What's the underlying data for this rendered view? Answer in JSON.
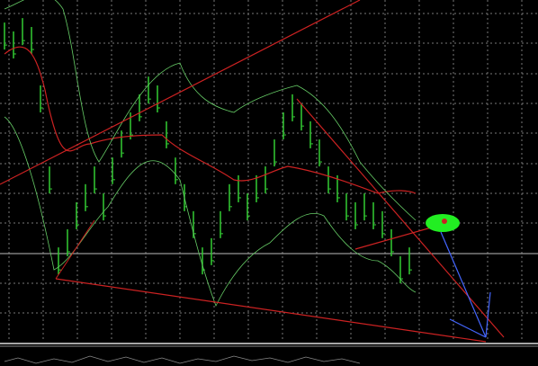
{
  "chart_data": {
    "type": "ohlc",
    "color": "#33cc33",
    "categories": [
      null,
      null,
      null,
      null,
      null,
      null,
      null,
      null,
      null,
      null,
      null,
      null,
      null,
      null,
      null,
      null,
      null,
      null,
      null,
      null,
      null,
      null,
      null,
      null,
      null,
      null,
      null,
      null,
      null,
      null,
      null,
      null,
      null,
      null,
      null,
      null,
      null,
      null,
      null,
      null,
      null,
      null,
      null,
      null,
      null,
      null
    ],
    "high": [
      93.4,
      90.8,
      94.7,
      92.1,
      75.0,
      51.3,
      27.6,
      32.9,
      40.8,
      46.1,
      51.3,
      43.4,
      53.9,
      61.8,
      67.1,
      72.4,
      77.6,
      75.0,
      64.5,
      53.9,
      46.1,
      38.2,
      27.6,
      30.3,
      38.2,
      46.1,
      48.7,
      43.4,
      48.7,
      51.3,
      59.2,
      67.1,
      72.4,
      69.7,
      64.5,
      59.2,
      51.3,
      48.7,
      43.4,
      40.8,
      43.4,
      40.8,
      38.2,
      32.9,
      25.0,
      27.6
    ],
    "low": [
      85.5,
      82.9,
      86.8,
      84.2,
      67.1,
      43.4,
      19.7,
      25.0,
      32.9,
      38.2,
      43.4,
      35.5,
      46.1,
      53.9,
      59.2,
      64.5,
      69.7,
      67.1,
      56.6,
      46.1,
      38.2,
      30.3,
      19.7,
      22.4,
      30.3,
      38.2,
      40.8,
      35.5,
      40.8,
      43.4,
      51.3,
      59.2,
      64.5,
      61.8,
      56.6,
      51.3,
      43.4,
      40.8,
      35.5,
      32.9,
      35.5,
      32.9,
      30.3,
      25.0,
      17.1,
      19.7
    ],
    "ylim": [
      0,
      100
    ]
  }
}
